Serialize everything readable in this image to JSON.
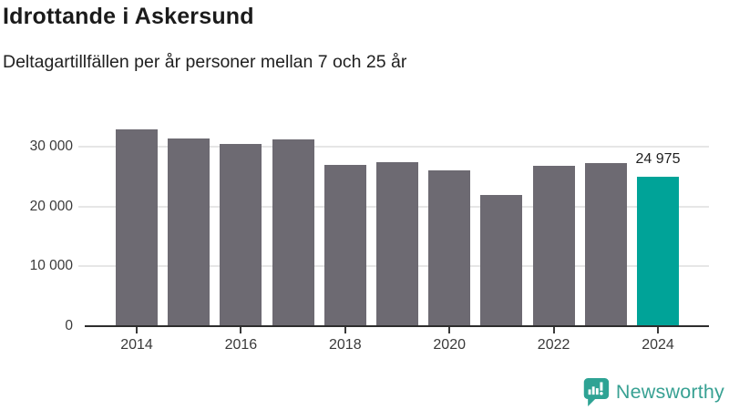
{
  "header": {
    "title": "Idrottande i Askersund",
    "subtitle": "Deltagartillfällen per år personer mellan 7 och 25 år"
  },
  "chart_data": {
    "type": "bar",
    "categories": [
      2014,
      2015,
      2016,
      2017,
      2018,
      2019,
      2020,
      2021,
      2022,
      2023,
      2024
    ],
    "values": [
      33000,
      31400,
      30500,
      31200,
      27000,
      27400,
      26100,
      21900,
      26800,
      27300,
      24975
    ],
    "title": "Idrottande i Askersund",
    "subtitle": "Deltagartillfällen per år personer mellan 7 och 25 år",
    "xlabel": "",
    "ylabel": "",
    "ylim": [
      0,
      34000
    ],
    "grid": "horizontal",
    "legend": "none",
    "bar_color": "#6d6a72",
    "highlight_color": "#00a398",
    "highlight_index": 10,
    "highlight_value_label": "24 975",
    "yticks": [
      {
        "value": 0,
        "label": "0"
      },
      {
        "value": 10000,
        "label": "10 000"
      },
      {
        "value": 20000,
        "label": "20 000"
      },
      {
        "value": 30000,
        "label": "30 000"
      }
    ],
    "xtick_labels": [
      "2014",
      "2016",
      "2018",
      "2020",
      "2022",
      "2024"
    ]
  },
  "branding": {
    "name": "Newsworthy",
    "icon": "newsworthy-speech-bubble-chart-icon",
    "icon_color": "#2ea394",
    "text_color": "#38a193"
  }
}
